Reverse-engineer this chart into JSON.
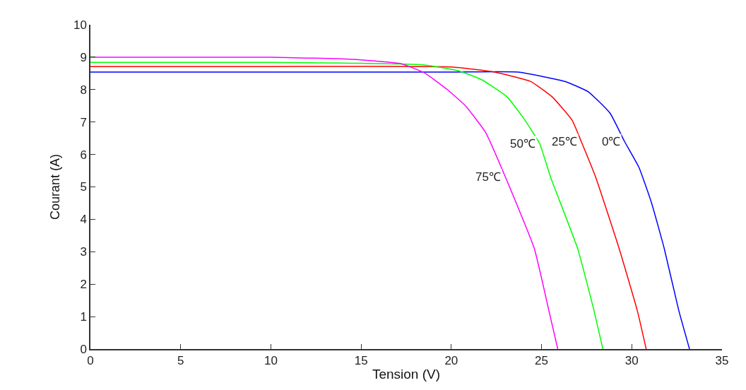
{
  "chart_data": {
    "type": "line",
    "xlabel": "Tension (V)",
    "ylabel": "Courant (A)",
    "xlim": [
      0,
      35
    ],
    "xticks": [
      0,
      5,
      10,
      15,
      20,
      25,
      30,
      35
    ],
    "ylim": [
      0,
      10
    ],
    "yticks": [
      0,
      1,
      2,
      3,
      4,
      5,
      6,
      7,
      8,
      9,
      10
    ],
    "legend": false,
    "marker": "none",
    "line_style": "solid",
    "series": [
      {
        "name": "0℃",
        "color": "#0000ff",
        "x": [
          0,
          10,
          20,
          23.7,
          26.3,
          27.6,
          28.8,
          29.6,
          30.4,
          31.1,
          31.8,
          32.6,
          33.2
        ],
        "values": [
          8.54,
          8.54,
          8.54,
          8.54,
          8.25,
          7.93,
          7.27,
          6.4,
          5.6,
          4.5,
          3.1,
          1.2,
          0
        ]
      },
      {
        "name": "25℃",
        "color": "#ff0000",
        "x": [
          0,
          10,
          20,
          22.4,
          24.4,
          25.6,
          26.7,
          27.2,
          28.0,
          29.3,
          30.3,
          30.8
        ],
        "values": [
          8.71,
          8.71,
          8.7,
          8.54,
          8.25,
          7.77,
          7.05,
          6.4,
          5.3,
          3.1,
          1.2,
          0
        ]
      },
      {
        "name": "50℃",
        "color": "#00ff00",
        "x": [
          0,
          10,
          18.5,
          20.4,
          21.7,
          23.1,
          24.0,
          24.9,
          25.5,
          27.0,
          27.9,
          28.4
        ],
        "values": [
          8.84,
          8.84,
          8.76,
          8.58,
          8.3,
          7.77,
          7.12,
          6.33,
          5.3,
          3.1,
          1.2,
          0
        ]
      },
      {
        "name": "75℃",
        "color": "#ff00ff",
        "x": [
          0,
          10,
          14.6,
          17.2,
          18.5,
          19.8,
          20.8,
          21.9,
          23.0,
          24.6,
          25.4,
          25.9
        ],
        "values": [
          9.0,
          9.0,
          8.93,
          8.8,
          8.52,
          7.99,
          7.49,
          6.68,
          5.3,
          3.1,
          1.2,
          0
        ]
      }
    ]
  }
}
